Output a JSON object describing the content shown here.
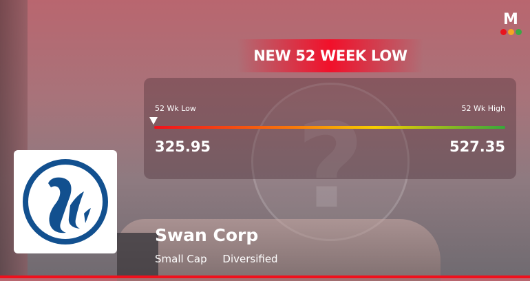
{
  "brand": {
    "letter": "M",
    "dot_colors": [
      "#e8141e",
      "#f5a623",
      "#3aa845"
    ]
  },
  "banner": {
    "title": "NEW 52 WEEK LOW"
  },
  "range": {
    "low_label": "52 Wk Low",
    "high_label": "52 Wk High",
    "low_value": "325.95",
    "high_value": "527.35",
    "current_position_percent": 0,
    "bar_colors": [
      "#f0101c",
      "#f87a0a",
      "#f6cf00",
      "#37a83a"
    ]
  },
  "company": {
    "name": "Swan Corp",
    "tags": [
      "Small Cap",
      "Diversified"
    ],
    "logo_color": "#12508f"
  },
  "accent": "#f0101c"
}
